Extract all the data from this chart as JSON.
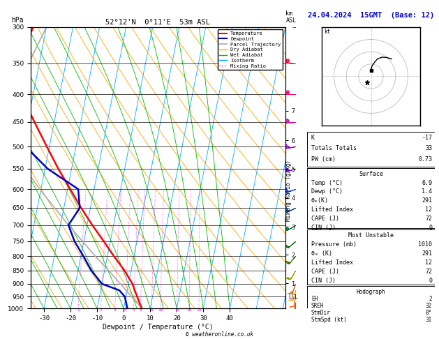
{
  "title_left": "52°12'N  0°11'E  53m ASL",
  "title_right": "24.04.2024  15GMT  (Base: 12)",
  "xlabel": "Dewpoint / Temperature (°C)",
  "ylabel_left": "hPa",
  "isotherm_color": "#00aaff",
  "dry_adiabat_color": "#ffa500",
  "wet_adiabat_color": "#00bb00",
  "mixing_ratio_color": "#ff00ff",
  "temperature_profile_color": "#ff0000",
  "dewpoint_profile_color": "#0000cc",
  "parcel_trajectory_color": "#aaaaaa",
  "pressure_ticks": [
    300,
    350,
    400,
    450,
    500,
    550,
    600,
    650,
    700,
    750,
    800,
    850,
    900,
    950,
    1000
  ],
  "km_ticks": [
    1,
    2,
    3,
    4,
    5,
    6,
    7
  ],
  "km_pressures": [
    898,
    795,
    705,
    623,
    551,
    487,
    429
  ],
  "lcl_pressure": 950,
  "skew_factor": 40,
  "xlim_low": -35,
  "xlim_high_ref": 40,
  "temperature_data": {
    "pressure": [
      1000,
      975,
      950,
      925,
      900,
      850,
      800,
      750,
      700,
      650,
      600,
      550,
      500,
      450,
      400,
      350,
      300
    ],
    "temp": [
      6.9,
      5.5,
      4.2,
      2.8,
      1.5,
      -2.5,
      -7.5,
      -12.5,
      -18.0,
      -23.5,
      -29.0,
      -35.0,
      -41.0,
      -47.5,
      -54.5,
      -58.0,
      -55.0
    ]
  },
  "dewpoint_data": {
    "pressure": [
      1000,
      975,
      950,
      925,
      900,
      850,
      800,
      750,
      700,
      650,
      600,
      550,
      500,
      450,
      400,
      350,
      300
    ],
    "dewp": [
      1.4,
      0.5,
      -0.5,
      -3.0,
      -10.0,
      -15.0,
      -19.0,
      -23.5,
      -27.0,
      -24.0,
      -26.0,
      -39.0,
      -49.0,
      -55.5,
      -62.0,
      -68.0,
      -72.0
    ]
  },
  "parcel_data": {
    "pressure": [
      1000,
      960,
      900,
      850,
      800,
      750,
      700,
      650,
      600,
      550,
      500,
      450,
      400,
      350,
      300
    ],
    "temp": [
      6.9,
      3.0,
      -3.0,
      -8.5,
      -14.5,
      -20.5,
      -27.0,
      -33.5,
      -40.5,
      -47.5,
      -55.0,
      -60.0,
      -58.0,
      -54.0,
      -50.0
    ]
  },
  "wind_data": {
    "pressure": [
      1000,
      975,
      950,
      925,
      900,
      850,
      800,
      750,
      700,
      650,
      600,
      550,
      500,
      450,
      400,
      350,
      300
    ],
    "direction": [
      180,
      185,
      190,
      195,
      200,
      210,
      220,
      230,
      240,
      245,
      250,
      255,
      260,
      265,
      270,
      275,
      280
    ],
    "speed_kt": [
      5,
      8,
      10,
      12,
      15,
      18,
      20,
      22,
      25,
      28,
      30,
      32,
      35,
      38,
      40,
      42,
      45
    ],
    "colors": [
      "#ff0000",
      "#ff3300",
      "#ff6600",
      "#ff9900",
      "#cc6600",
      "#999900",
      "#336600",
      "#006600",
      "#006633",
      "#003366",
      "#0033cc",
      "#6600cc",
      "#9900cc",
      "#cc0099",
      "#ff0066",
      "#ff0033",
      "#ff0000"
    ]
  },
  "surface_data": {
    "K": -17,
    "TotTot": 33,
    "PW_cm": 0.73,
    "Temp_C": 6.9,
    "Dewp_C": 1.4,
    "theta_e_K": 291,
    "LiftedIndex": 12,
    "CAPE_J": 72,
    "CIN_J": 0
  },
  "most_unstable_data": {
    "Pressure_mb": 1010,
    "theta_e_K": 291,
    "LiftedIndex": 12,
    "CAPE_J": 72,
    "CIN_J": 0
  },
  "hodograph_data": {
    "EH": 2,
    "SREH": 32,
    "StmDir": "8°",
    "StmSpd_kt": 31
  }
}
